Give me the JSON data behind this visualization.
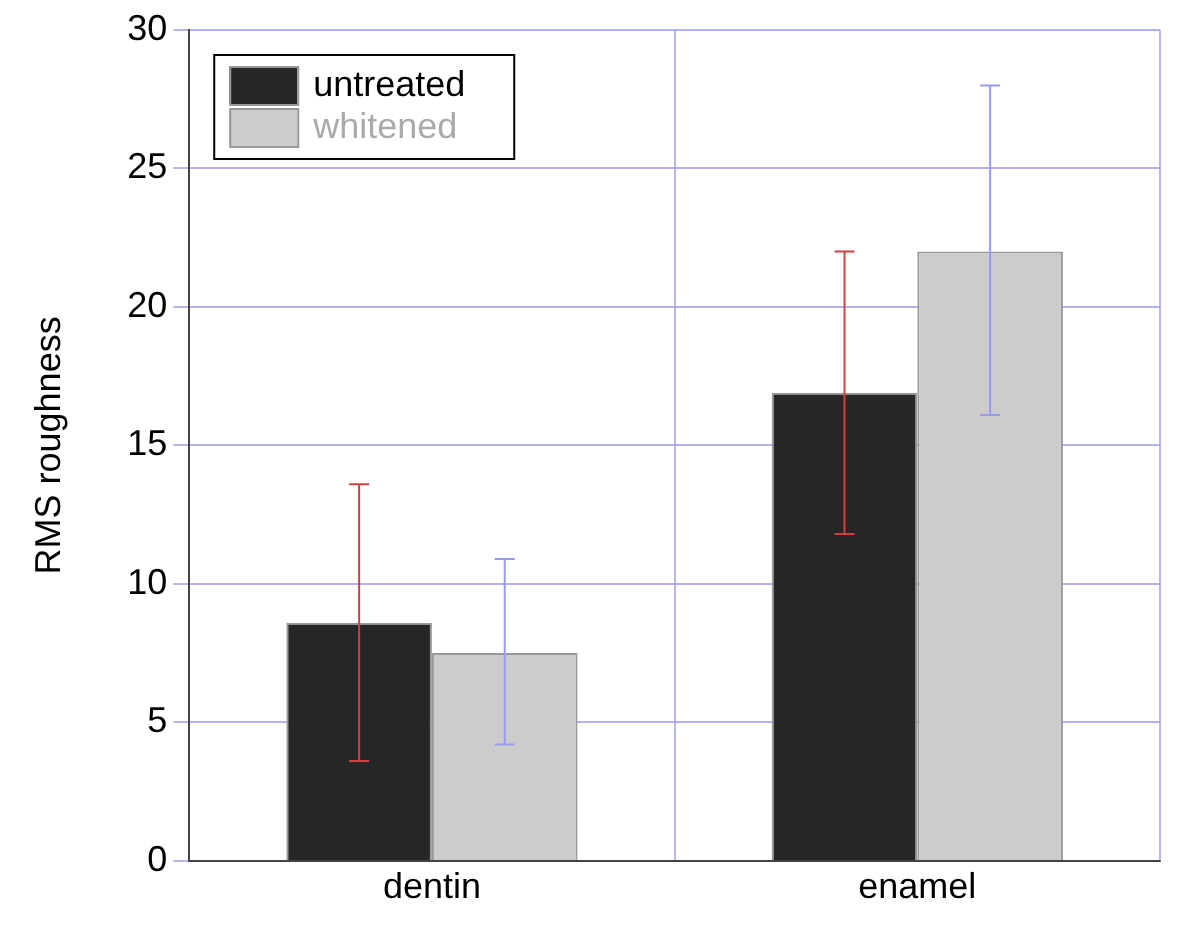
{
  "chart_data": {
    "type": "bar",
    "ylabel": "RMS roughness",
    "categories": [
      "dentin",
      "enamel"
    ],
    "series": [
      {
        "name": "untreated",
        "color": "#262626",
        "values": [
          8.6,
          16.9
        ],
        "errors": [
          [
            3.6,
            13.6
          ],
          [
            11.8,
            22.0
          ]
        ]
      },
      {
        "name": "whitened",
        "color": "#cccccc",
        "values": [
          7.5,
          22.0
        ],
        "errors": [
          [
            4.2,
            10.9
          ],
          [
            16.1,
            28.0
          ]
        ]
      }
    ],
    "ylim": [
      0,
      30
    ],
    "yticks": [
      0,
      5,
      10,
      15,
      20,
      25,
      30
    ],
    "grid": true,
    "legend": "top left"
  }
}
